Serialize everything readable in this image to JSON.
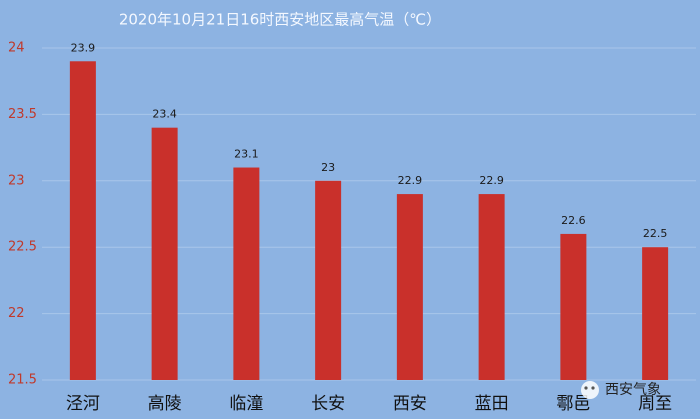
{
  "chart_data": {
    "type": "bar",
    "title": "2020年10月21日16时西安地区最高气温（℃）",
    "categories": [
      "泾河",
      "高陵",
      "临潼",
      "长安",
      "西安",
      "蓝田",
      "鄠邑",
      "周至"
    ],
    "values": [
      23.9,
      23.4,
      23.1,
      23,
      22.9,
      22.9,
      22.6,
      22.5
    ],
    "color": "#c9302b",
    "ylim": [
      21.5,
      24
    ],
    "yticks": [
      21.5,
      22,
      22.5,
      23,
      23.5,
      24
    ],
    "grid": true,
    "watermark": "西安气象"
  }
}
